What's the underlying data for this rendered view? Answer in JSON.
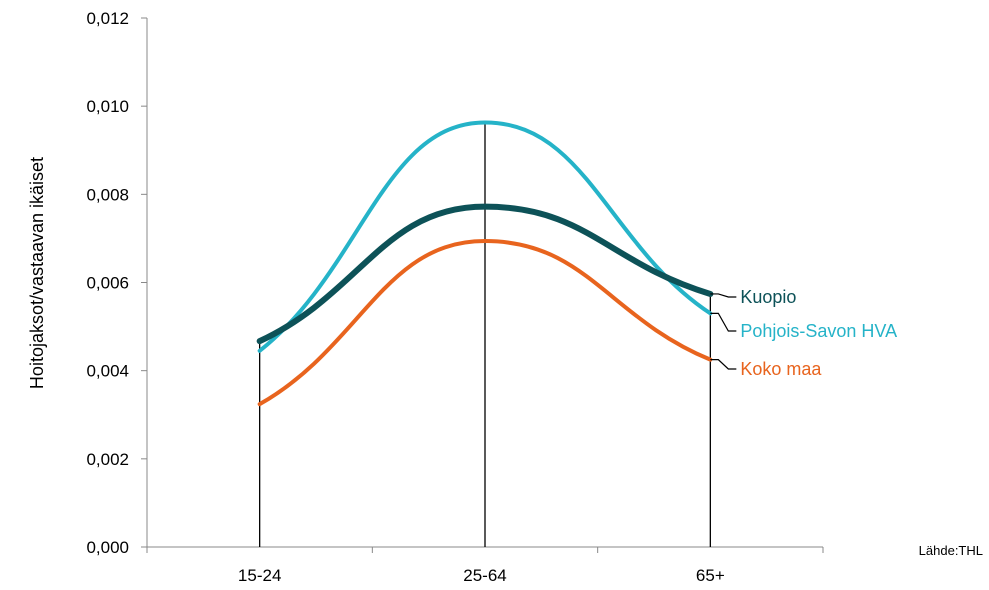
{
  "chart_data": {
    "type": "line",
    "categories": [
      "15-24",
      "25-64",
      "65+"
    ],
    "ylabel": "Hoitojaksot/vastaavan ikäiset",
    "ylim": [
      0,
      0.012
    ],
    "yticks": [
      "0,000",
      "0,002",
      "0,004",
      "0,006",
      "0,008",
      "0,010",
      "0,012"
    ],
    "ytick_values": [
      0,
      0.002,
      0.004,
      0.006,
      0.008,
      0.01,
      0.012
    ],
    "smoothed": true,
    "grid": false,
    "legend_placement": "labels at line ends (right)",
    "source": "Lähde:THL",
    "series": [
      {
        "name": "Pohjois-Savon HVA",
        "values": [
          0.00445,
          0.00963,
          0.0053
        ],
        "color": "#25b3c8",
        "width": 4
      },
      {
        "name": "Kuopio",
        "values": [
          0.00467,
          0.00772,
          0.00574
        ],
        "color": "#0d5258",
        "width": 6
      },
      {
        "name": "Koko maa",
        "values": [
          0.00324,
          0.00694,
          0.00425
        ],
        "color": "#e8641e",
        "width": 4
      }
    ]
  }
}
